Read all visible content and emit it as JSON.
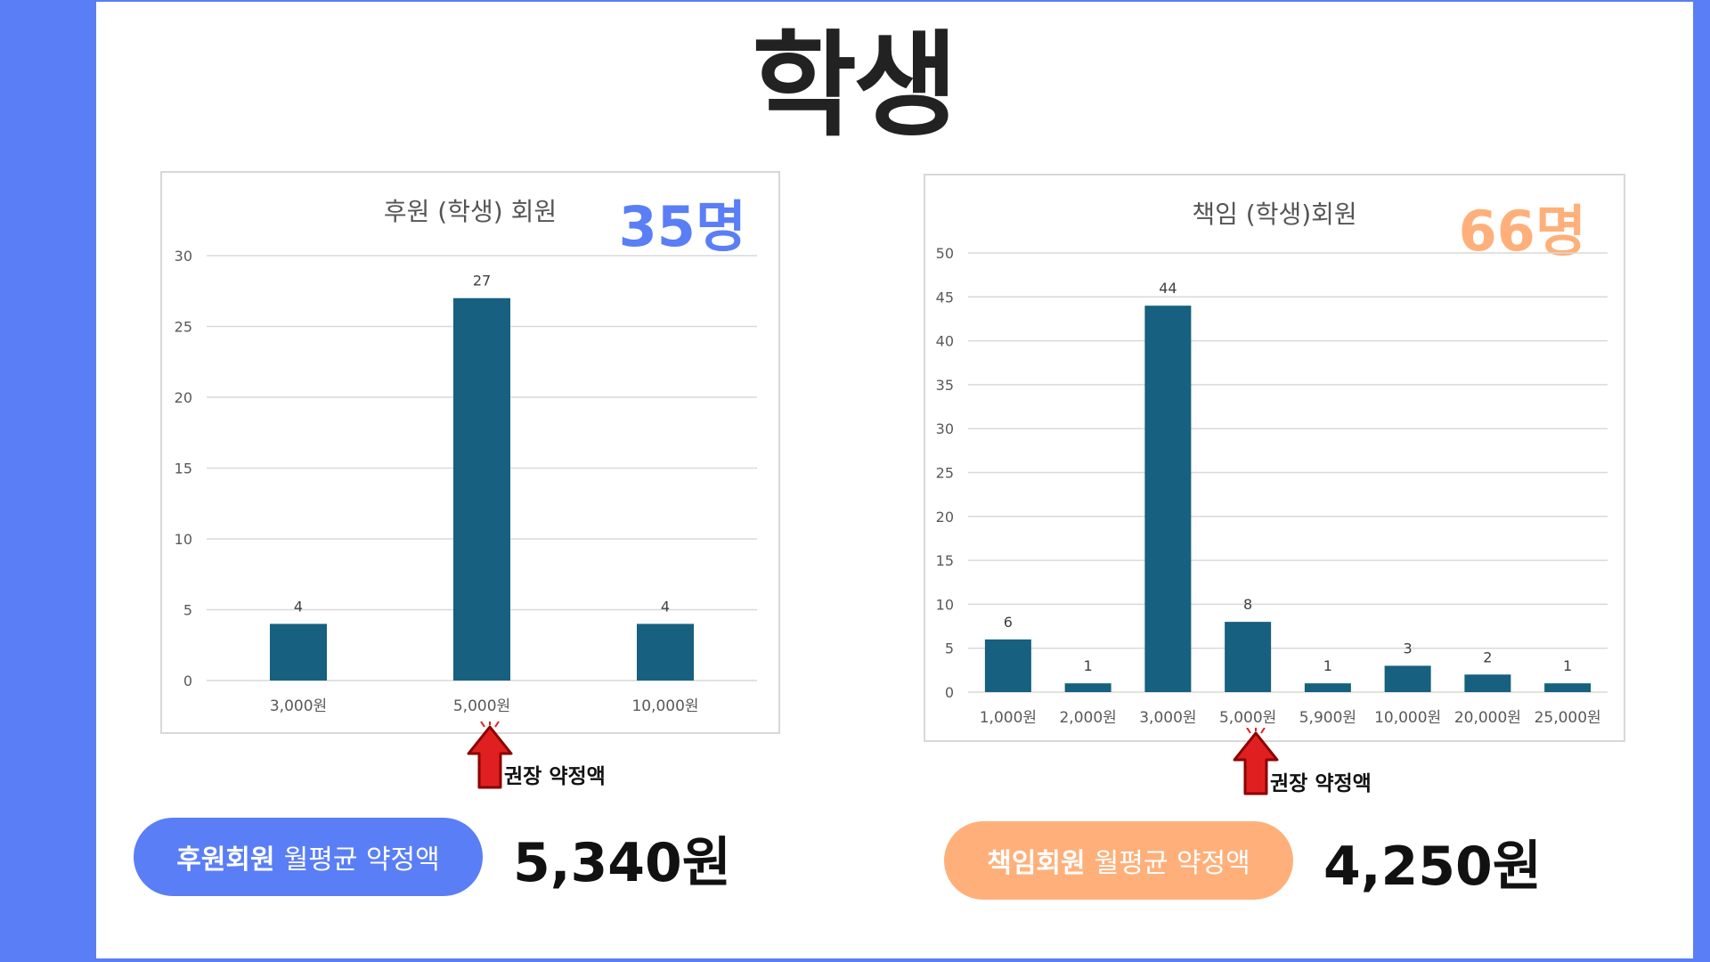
{
  "title": "학생",
  "colors": {
    "bar": "#17607f",
    "blue": "#5a7ef6",
    "orange": "#ffb07a",
    "arrow": "#e02020"
  },
  "charts": {
    "left": {
      "title": "후원 (학생) 회원",
      "count": "35명",
      "note": "권장 약정액",
      "highlight_index": 1
    },
    "right": {
      "title": "책임 (학생)회원",
      "count": "66명",
      "note": "권장 약정액",
      "highlight_index": 3
    }
  },
  "summary": {
    "left": {
      "label_strong": "후원회원",
      "label_rest": "월평균 약정액",
      "value": "5,340원"
    },
    "right": {
      "label_strong": "책임회원",
      "label_rest": "월평균 약정액",
      "value": "4,250원"
    }
  },
  "chart_data": [
    {
      "type": "bar",
      "title": "후원 (학생) 회원",
      "categories": [
        "3,000원",
        "5,000원",
        "10,000원"
      ],
      "values": [
        4,
        27,
        4
      ],
      "ylim": [
        0,
        30
      ],
      "yticks": [
        0,
        5,
        10,
        15,
        20,
        25,
        30
      ],
      "grid": true,
      "data_labels": true
    },
    {
      "type": "bar",
      "title": "책임 (학생)회원",
      "categories": [
        "1,000원",
        "2,000원",
        "3,000원",
        "5,000원",
        "5,900원",
        "10,000원",
        "20,000원",
        "25,000원"
      ],
      "values": [
        6,
        1,
        44,
        8,
        1,
        3,
        2,
        1
      ],
      "ylim": [
        0,
        50
      ],
      "yticks": [
        0,
        5,
        10,
        15,
        20,
        25,
        30,
        35,
        40,
        45,
        50
      ],
      "grid": true,
      "data_labels": true
    }
  ]
}
